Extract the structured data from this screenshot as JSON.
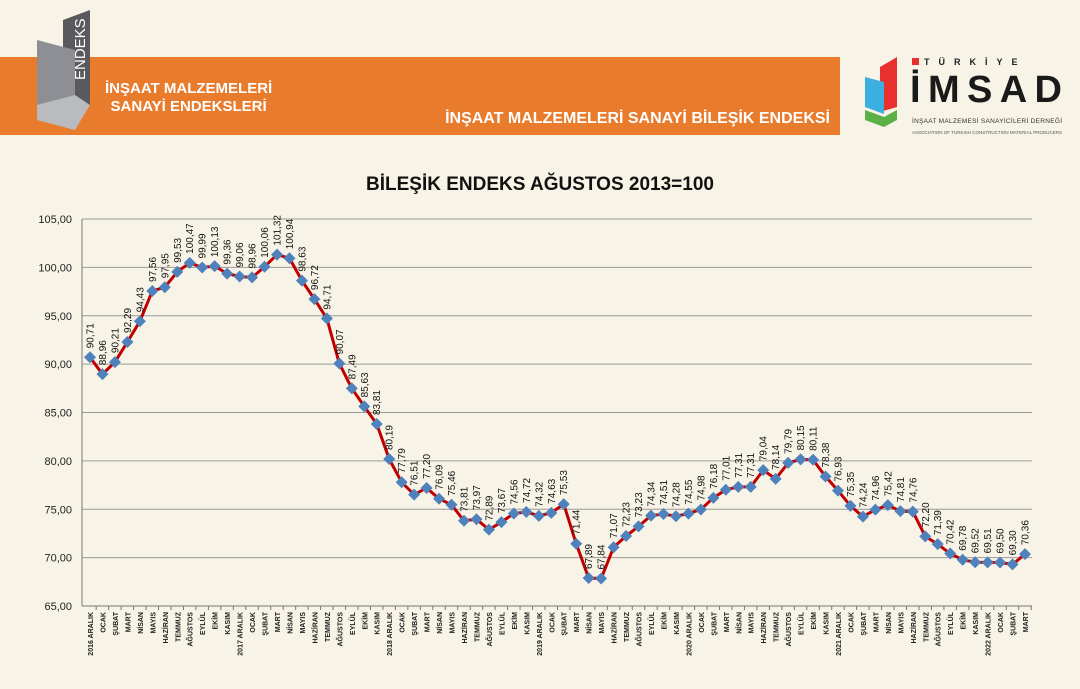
{
  "header": {
    "logo_text": "ENDEKS",
    "band_title_line1": "İNŞAAT MALZEMELERİ",
    "band_title_line2": "SANAYİ ENDEKSLERİ",
    "band_subtitle": "İNŞAAT MALZEMELERİ SANAYİ BİLEŞİK ENDEKSİ",
    "brand_logo": {
      "top": "TÜRKİYE",
      "main": "İMSAD",
      "line1": "İNŞAAT MALZEMESİ SANAYİCİLERİ DERNEĞİ",
      "line2": "ASSOCIATION OF TURKISH CONSTRUCTION MATERIAL PRODUCERS"
    },
    "colors": {
      "band": "#e87b2c"
    }
  },
  "chart_data": {
    "type": "line",
    "title": "BİLEŞİK ENDEKS AĞUSTOS 2013=100",
    "xlabel": "",
    "ylabel": "",
    "ylim": [
      65,
      105
    ],
    "yticks": [
      "65,00",
      "70,00",
      "75,00",
      "80,00",
      "85,00",
      "90,00",
      "95,00",
      "100,00",
      "105,00"
    ],
    "grid": true,
    "line_color": "#c00000",
    "marker_color": "#4f81bd",
    "marker": "diamond",
    "categories": [
      "2016 ARALIK",
      "OCAK",
      "ŞUBAT",
      "MART",
      "NİSAN",
      "MAYIS",
      "HAZİRAN",
      "TEMMUZ",
      "AĞUSTOS",
      "EYLÜL",
      "EKİM",
      "KASIM",
      "2017 ARALIK",
      "OCAK",
      "ŞUBAT",
      "MART",
      "NİSAN",
      "MAYIS",
      "HAZİRAN",
      "TEMMUZ",
      "AĞUSTOS",
      "EYLÜL",
      "EKİM",
      "KASIM",
      "2018 ARALIK",
      "OCAK",
      "ŞUBAT",
      "MART",
      "NİSAN",
      "MAYIS",
      "HAZİRAN",
      "TEMMUZ",
      "AĞUSTOS",
      "EYLÜL",
      "EKİM",
      "KASIM",
      "2019 ARALIK",
      "OCAK",
      "ŞUBAT",
      "MART",
      "NİSAN",
      "MAYIS",
      "HAZİRAN",
      "TEMMUZ",
      "AĞUSTOS",
      "EYLÜL",
      "EKİM",
      "KASIM",
      "2020 ARALIK",
      "OCAK",
      "ŞUBAT",
      "MART",
      "NİSAN",
      "MAYIS",
      "HAZİRAN",
      "TEMMUZ",
      "AĞUSTOS",
      "EYLÜL",
      "EKİM",
      "KASIM",
      "2021 ARALIK",
      "OCAK",
      "ŞUBAT",
      "MART",
      "NİSAN",
      "MAYIS",
      "HAZİRAN",
      "TEMMUZ",
      "AĞUSTOS",
      "EYLÜL",
      "EKİM",
      "KASIM",
      "2022 ARALIK",
      "OCAK",
      "ŞUBAT",
      "MART"
    ],
    "values": [
      90.71,
      88.96,
      90.21,
      92.29,
      94.43,
      97.56,
      97.95,
      99.53,
      100.47,
      99.99,
      100.13,
      99.36,
      99.06,
      98.96,
      100.06,
      101.32,
      100.94,
      98.63,
      96.72,
      94.71,
      90.07,
      87.49,
      85.63,
      83.81,
      80.19,
      77.79,
      76.51,
      77.2,
      76.09,
      75.46,
      73.81,
      73.97,
      72.89,
      73.67,
      74.56,
      74.72,
      74.32,
      74.63,
      75.53,
      71.44,
      67.89,
      67.84,
      71.07,
      72.23,
      73.23,
      74.34,
      74.51,
      74.28,
      74.55,
      74.98,
      76.18,
      77.01,
      77.31,
      77.31,
      79.04,
      78.14,
      79.79,
      80.15,
      80.11,
      78.38,
      76.93,
      75.35,
      74.24,
      74.96,
      75.42,
      74.81,
      74.76,
      72.2,
      71.39,
      70.42,
      69.78,
      69.52,
      69.51,
      69.5,
      69.3,
      70.36
    ]
  }
}
